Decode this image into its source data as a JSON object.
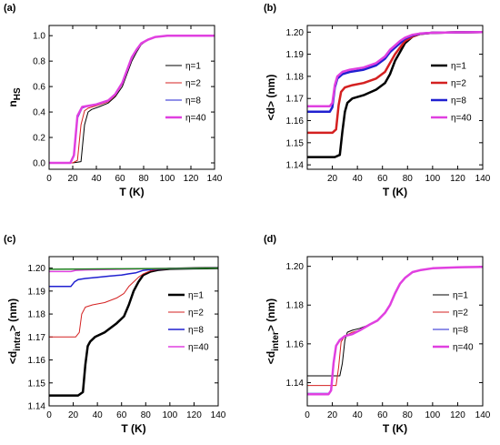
{
  "chart_data": [
    {
      "type": "line",
      "panel_label": "(a)",
      "xlabel": "T (K)",
      "ylabel_main": "n",
      "ylabel_sub": "HS",
      "xlim": [
        0,
        140
      ],
      "ylim": [
        -0.05,
        1.08
      ],
      "xticks": [
        "0",
        "20",
        "40",
        "60",
        "80",
        "100",
        "120",
        "140"
      ],
      "xtick_values": [
        0,
        20,
        40,
        60,
        80,
        100,
        120,
        140
      ],
      "yticks": [
        "0.0",
        "0.2",
        "0.4",
        "0.6",
        "0.8",
        "1.0"
      ],
      "ytick_values": [
        0.0,
        0.2,
        0.4,
        0.6,
        0.8,
        1.0
      ],
      "series": [
        {
          "name": "η=1",
          "color": "#000000",
          "width": 1,
          "x": [
            0,
            20,
            27,
            30,
            33,
            36,
            42,
            50,
            56,
            62,
            66,
            70,
            74,
            78,
            84,
            90,
            100,
            120,
            140
          ],
          "y": [
            0,
            0,
            0.01,
            0.3,
            0.4,
            0.42,
            0.44,
            0.47,
            0.52,
            0.6,
            0.7,
            0.8,
            0.87,
            0.93,
            0.97,
            0.99,
            1.0,
            1.0,
            1.0
          ]
        },
        {
          "name": "η=2",
          "color": "#d42020",
          "width": 1,
          "x": [
            0,
            20,
            24,
            27,
            30,
            33,
            40,
            50,
            56,
            62,
            66,
            70,
            74,
            78,
            84,
            90,
            100,
            120,
            140
          ],
          "y": [
            0,
            0,
            0.02,
            0.3,
            0.41,
            0.43,
            0.45,
            0.48,
            0.53,
            0.62,
            0.72,
            0.82,
            0.89,
            0.94,
            0.97,
            0.99,
            1.0,
            1.0,
            1.0
          ]
        },
        {
          "name": "η=8",
          "color": "#2020d0",
          "width": 1,
          "x": [
            0,
            18,
            21,
            24,
            28,
            34,
            40,
            50,
            56,
            62,
            66,
            70,
            74,
            78,
            84,
            90,
            100,
            120,
            140
          ],
          "y": [
            0,
            0,
            0.05,
            0.35,
            0.43,
            0.45,
            0.46,
            0.49,
            0.54,
            0.63,
            0.73,
            0.83,
            0.89,
            0.94,
            0.97,
            0.99,
            1.0,
            1.0,
            1.0
          ]
        },
        {
          "name": "η=40",
          "color": "#e040e0",
          "width": 2.5,
          "x": [
            0,
            18,
            21,
            24,
            28,
            34,
            40,
            50,
            56,
            62,
            66,
            70,
            74,
            78,
            84,
            90,
            100,
            120,
            140
          ],
          "y": [
            0,
            0,
            0.06,
            0.37,
            0.44,
            0.45,
            0.46,
            0.49,
            0.54,
            0.63,
            0.73,
            0.83,
            0.89,
            0.94,
            0.97,
            0.99,
            1.0,
            1.0,
            1.0
          ]
        }
      ],
      "legend_position": "right"
    },
    {
      "type": "line",
      "panel_label": "(b)",
      "xlabel": "T (K)",
      "ylabel_main": "<d> (nm)",
      "xlim": [
        0,
        140
      ],
      "ylim": [
        1.138,
        1.203
      ],
      "xticks": [
        "20",
        "40",
        "60",
        "80",
        "100",
        "120",
        "140"
      ],
      "xtick_values": [
        20,
        40,
        60,
        80,
        100,
        120,
        140
      ],
      "yticks": [
        "1.14",
        "1.15",
        "1.16",
        "1.17",
        "1.18",
        "1.19",
        "1.20"
      ],
      "ytick_values": [
        1.14,
        1.15,
        1.16,
        1.17,
        1.18,
        1.19,
        1.2
      ],
      "series": [
        {
          "name": "η=1",
          "color": "#000000",
          "width": 2.5,
          "x": [
            0,
            22,
            26,
            28,
            30,
            32,
            36,
            45,
            55,
            62,
            66,
            70,
            74,
            78,
            84,
            90,
            100,
            120,
            140
          ],
          "y": [
            1.1435,
            1.1435,
            1.1445,
            1.155,
            1.164,
            1.168,
            1.17,
            1.1715,
            1.174,
            1.177,
            1.181,
            1.187,
            1.191,
            1.195,
            1.198,
            1.1992,
            1.1997,
            1.1999,
            1.2
          ]
        },
        {
          "name": "η=2",
          "color": "#d42020",
          "width": 2.5,
          "x": [
            0,
            20,
            23,
            25,
            27,
            30,
            36,
            45,
            55,
            62,
            66,
            70,
            74,
            78,
            84,
            90,
            100,
            120,
            140
          ],
          "y": [
            1.1545,
            1.1545,
            1.156,
            1.167,
            1.173,
            1.175,
            1.176,
            1.177,
            1.179,
            1.182,
            1.186,
            1.19,
            1.193,
            1.196,
            1.198,
            1.1992,
            1.1997,
            1.1999,
            1.2
          ]
        },
        {
          "name": "η=8",
          "color": "#2020d0",
          "width": 2.5,
          "x": [
            0,
            18,
            20,
            22,
            24,
            28,
            34,
            45,
            55,
            62,
            66,
            70,
            74,
            78,
            84,
            90,
            100,
            120,
            140
          ],
          "y": [
            1.164,
            1.164,
            1.166,
            1.175,
            1.179,
            1.181,
            1.182,
            1.183,
            1.185,
            1.188,
            1.191,
            1.193,
            1.195,
            1.197,
            1.1985,
            1.1993,
            1.1997,
            1.1999,
            1.2
          ]
        },
        {
          "name": "η=40",
          "color": "#e040e0",
          "width": 2.5,
          "x": [
            0,
            18,
            20,
            22,
            24,
            28,
            34,
            45,
            55,
            62,
            66,
            70,
            74,
            78,
            84,
            90,
            100,
            120,
            140
          ],
          "y": [
            1.1665,
            1.1665,
            1.168,
            1.176,
            1.18,
            1.182,
            1.183,
            1.184,
            1.186,
            1.189,
            1.192,
            1.194,
            1.196,
            1.1975,
            1.1988,
            1.1994,
            1.1997,
            1.1999,
            1.2
          ]
        }
      ],
      "legend_position": "right"
    },
    {
      "type": "line",
      "panel_label": "(c)",
      "xlabel": "T (K)",
      "ylabel_main": "<d",
      "ylabel_sub": "intra",
      "ylabel_tail": "> (nm)",
      "xlim": [
        0,
        140
      ],
      "ylim": [
        1.14,
        1.205
      ],
      "xticks": [
        "0",
        "20",
        "40",
        "60",
        "80",
        "100",
        "120",
        "140"
      ],
      "xtick_values": [
        0,
        20,
        40,
        60,
        80,
        100,
        120,
        140
      ],
      "yticks": [
        "1.14",
        "1.15",
        "1.16",
        "1.17",
        "1.18",
        "1.19",
        "1.20"
      ],
      "ytick_values": [
        1.14,
        1.15,
        1.16,
        1.17,
        1.18,
        1.19,
        1.2
      ],
      "series": [
        {
          "name": "η=1",
          "color": "#000000",
          "width": 2.5,
          "x": [
            0,
            24,
            28,
            30,
            32,
            34,
            38,
            46,
            56,
            62,
            66,
            70,
            74,
            78,
            84,
            90,
            100,
            120,
            140
          ],
          "y": [
            1.1445,
            1.1445,
            1.146,
            1.158,
            1.166,
            1.168,
            1.17,
            1.172,
            1.176,
            1.179,
            1.184,
            1.19,
            1.194,
            1.197,
            1.1985,
            1.1992,
            1.1997,
            1.1999,
            1.2
          ]
        },
        {
          "name": "η=2",
          "color": "#d42020",
          "width": 1,
          "x": [
            0,
            22,
            25,
            27,
            30,
            36,
            46,
            56,
            62,
            66,
            70,
            74,
            78,
            84,
            90,
            100,
            120,
            140
          ],
          "y": [
            1.17,
            1.17,
            1.172,
            1.18,
            1.183,
            1.184,
            1.185,
            1.187,
            1.189,
            1.192,
            1.194,
            1.196,
            1.1975,
            1.1988,
            1.1994,
            1.1997,
            1.1999,
            1.2
          ]
        },
        {
          "name": "η=8",
          "color": "#2020d0",
          "width": 1.5,
          "x": [
            0,
            18,
            21,
            24,
            30,
            40,
            50,
            60,
            66,
            72,
            78,
            86,
            100,
            120,
            140
          ],
          "y": [
            1.192,
            1.192,
            1.194,
            1.195,
            1.1955,
            1.196,
            1.1965,
            1.197,
            1.1975,
            1.198,
            1.199,
            1.1995,
            1.1998,
            1.1999,
            1.2
          ]
        },
        {
          "name": "η=40",
          "color": "#e040e0",
          "width": 1.5,
          "x": [
            0,
            18,
            22,
            30,
            50,
            70,
            90,
            110,
            140
          ],
          "y": [
            1.1985,
            1.1985,
            1.199,
            1.1992,
            1.1994,
            1.1996,
            1.1998,
            1.1999,
            1.2
          ]
        },
        {
          "name": "",
          "color": "#208020",
          "width": 1.5,
          "x": [
            0,
            30,
            60,
            90,
            120,
            140
          ],
          "y": [
            1.1995,
            1.1996,
            1.1997,
            1.1998,
            1.1999,
            1.2
          ]
        }
      ],
      "legend_position": "right"
    },
    {
      "type": "line",
      "panel_label": "(d)",
      "xlabel": "T (K)",
      "ylabel_main": "<d",
      "ylabel_sub": "inter",
      "ylabel_tail": "> (nm)",
      "xlim": [
        0,
        140
      ],
      "ylim": [
        1.128,
        1.205
      ],
      "xticks": [
        "0",
        "20",
        "40",
        "60",
        "80",
        "100",
        "120",
        "140"
      ],
      "xtick_values": [
        0,
        20,
        40,
        60,
        80,
        100,
        120,
        140
      ],
      "yticks": [
        "1.14",
        "1.16",
        "1.18",
        "1.20"
      ],
      "ytick_values": [
        1.14,
        1.16,
        1.18,
        1.2
      ],
      "series": [
        {
          "name": "η=1",
          "color": "#000000",
          "width": 1,
          "x": [
            0,
            26,
            28,
            30,
            32,
            36,
            42,
            50,
            56,
            62,
            66,
            70,
            74,
            78,
            84,
            90,
            100,
            120,
            140
          ],
          "y": [
            1.1435,
            1.1435,
            1.15,
            1.162,
            1.166,
            1.167,
            1.168,
            1.17,
            1.172,
            1.176,
            1.18,
            1.186,
            1.191,
            1.194,
            1.197,
            1.198,
            1.199,
            1.1995,
            1.1997
          ]
        },
        {
          "name": "η=2",
          "color": "#d42020",
          "width": 1,
          "x": [
            0,
            23,
            25,
            27,
            30,
            36,
            42,
            50,
            56,
            62,
            66,
            70,
            74,
            78,
            84,
            90,
            100,
            120,
            140
          ],
          "y": [
            1.1385,
            1.1385,
            1.148,
            1.161,
            1.164,
            1.166,
            1.167,
            1.17,
            1.172,
            1.176,
            1.18,
            1.186,
            1.191,
            1.194,
            1.197,
            1.198,
            1.199,
            1.1995,
            1.1997
          ]
        },
        {
          "name": "η=8",
          "color": "#2020d0",
          "width": 1,
          "x": [
            0,
            17,
            19,
            21,
            23,
            26,
            30,
            36,
            42,
            50,
            56,
            62,
            66,
            70,
            74,
            78,
            84,
            90,
            100,
            120,
            140
          ],
          "y": [
            1.1345,
            1.1345,
            1.136,
            1.15,
            1.159,
            1.162,
            1.164,
            1.165,
            1.167,
            1.17,
            1.172,
            1.176,
            1.18,
            1.186,
            1.191,
            1.194,
            1.197,
            1.198,
            1.199,
            1.1995,
            1.1997
          ]
        },
        {
          "name": "η=40",
          "color": "#e040e0",
          "width": 2.5,
          "x": [
            0,
            17,
            19,
            21,
            23,
            26,
            30,
            36,
            42,
            50,
            56,
            62,
            66,
            70,
            74,
            78,
            84,
            90,
            100,
            120,
            140
          ],
          "y": [
            1.134,
            1.134,
            1.136,
            1.15,
            1.159,
            1.162,
            1.164,
            1.165,
            1.167,
            1.17,
            1.172,
            1.176,
            1.18,
            1.186,
            1.191,
            1.194,
            1.197,
            1.198,
            1.199,
            1.1995,
            1.1997
          ]
        }
      ],
      "legend_position": "right"
    }
  ]
}
